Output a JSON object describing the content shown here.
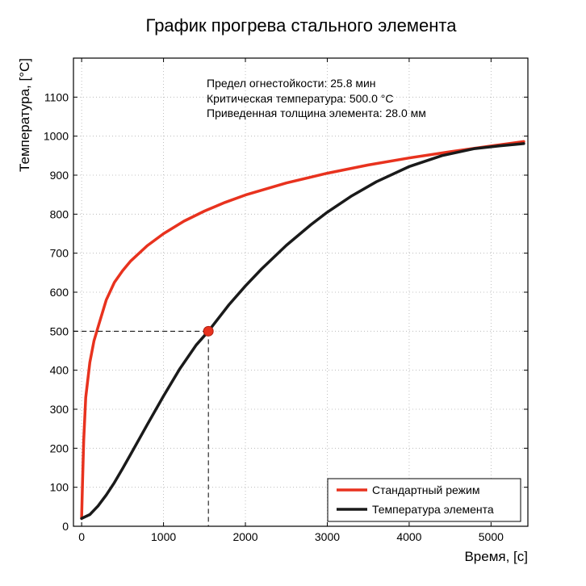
{
  "chart_data": {
    "type": "line",
    "title": "График прогрева стального элемента",
    "xlabel": "Время, [с]",
    "ylabel": "Температура, [°С]",
    "xlim": [
      -100,
      5450
    ],
    "ylim": [
      0,
      1200
    ],
    "x_ticks": [
      0,
      1000,
      2000,
      3000,
      4000,
      5000
    ],
    "y_ticks": [
      0,
      100,
      200,
      300,
      400,
      500,
      600,
      700,
      800,
      900,
      1000,
      1100
    ],
    "grid": true,
    "legend_position": "lower-right",
    "annotations": [
      "Предел огнестойкости: 25.8 мин",
      "Критическая температура: 500.0 °С",
      "Приведенная толщина элемента: 28.0 мм"
    ],
    "critical_point": {
      "x": 1548,
      "y": 500
    },
    "series": [
      {
        "name": "Стандартный режим",
        "color": "#e8321e",
        "x": [
          0,
          10,
          25,
          50,
          100,
          150,
          200,
          300,
          400,
          500,
          600,
          800,
          1000,
          1250,
          1500,
          1750,
          2000,
          2500,
          3000,
          3500,
          4000,
          4500,
          5000,
          5400
        ],
        "y": [
          20,
          110,
          220,
          330,
          420,
          475,
          510,
          580,
          625,
          655,
          680,
          719,
          750,
          782,
          808,
          830,
          849,
          880,
          905,
          926,
          944,
          960,
          975,
          986
        ]
      },
      {
        "name": "Температура элемента",
        "color": "#1a1a1a",
        "x": [
          0,
          100,
          200,
          300,
          400,
          500,
          600,
          800,
          1000,
          1200,
          1400,
          1548,
          1800,
          2000,
          2200,
          2500,
          2800,
          3000,
          3300,
          3600,
          4000,
          4400,
          4800,
          5100,
          5400
        ],
        "y": [
          20,
          30,
          52,
          80,
          112,
          148,
          185,
          260,
          334,
          404,
          465,
          500,
          568,
          616,
          660,
          720,
          773,
          805,
          847,
          883,
          922,
          950,
          968,
          975,
          981
        ]
      }
    ]
  }
}
